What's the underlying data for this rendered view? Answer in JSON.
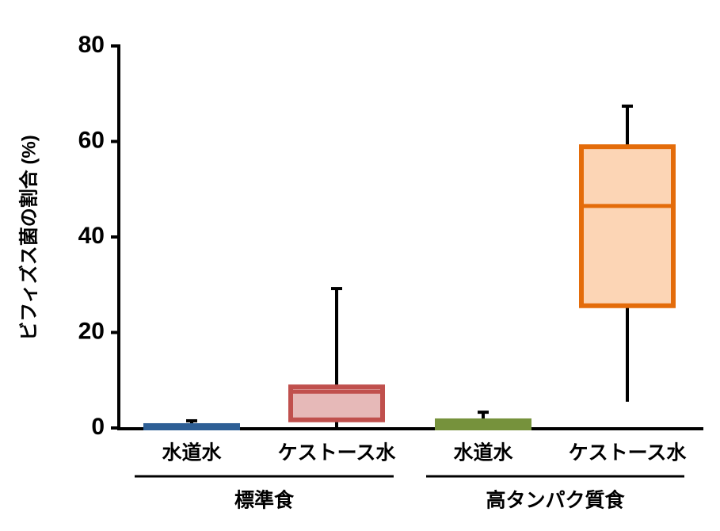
{
  "chart_data": {
    "type": "box",
    "ylabel": "ビフィズス菌の割合 (%)",
    "ylim": [
      0,
      80
    ],
    "yticks": [
      0,
      20,
      40,
      60,
      80
    ],
    "groups": [
      {
        "name": "標準食",
        "boxes": [
          {
            "category": "水道水",
            "min": 0,
            "q1": 0,
            "median": 0.2,
            "q3": 0.5,
            "max": 1.5,
            "color": "#2e5f95",
            "fill": "#9dc3e6"
          },
          {
            "category": "ケストース水",
            "min": 0,
            "q1": 1.7,
            "median": 7.6,
            "q3": 8.6,
            "max": 29.2,
            "color": "#c0504d",
            "fill": "#e6b9b8"
          }
        ]
      },
      {
        "name": "高タンパク質食",
        "boxes": [
          {
            "category": "水道水",
            "min": 0,
            "q1": 0,
            "median": 0.7,
            "q3": 1.5,
            "max": 3.3,
            "color": "#76923c",
            "fill": "#c3d69b"
          },
          {
            "category": "ケストース水",
            "min": 5.5,
            "q1": 25.6,
            "median": 46.5,
            "q3": 58.9,
            "max": 67.4,
            "color": "#e46c0a",
            "fill": "#fcd5b5"
          }
        ]
      }
    ]
  }
}
